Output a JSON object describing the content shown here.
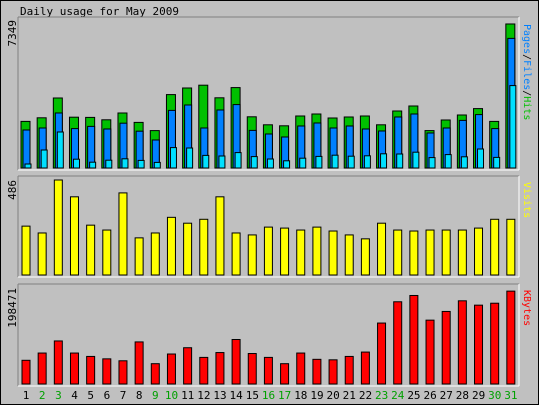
{
  "chart_data": [
    {
      "type": "bar",
      "title": "Daily usage for May 2009",
      "ymax_label": "7349",
      "ymax": 7349,
      "legend": [
        {
          "text": "Pages",
          "color": "#0080ff"
        },
        {
          "text": "/",
          "color": "#000000"
        },
        {
          "text": "Files",
          "color": "#0080ff"
        },
        {
          "text": "/",
          "color": "#000000"
        },
        {
          "text": "Hits",
          "color": "#00c000"
        }
      ],
      "colors": {
        "hits": "#00c000",
        "files": "#0080ff",
        "pages": "#00e0ff"
      },
      "series": [
        {
          "name": "Hits",
          "values": [
            2330,
            2510,
            3500,
            2540,
            2530,
            2410,
            2750,
            2280,
            1870,
            3670,
            4000,
            4140,
            3510,
            4020,
            2560,
            2160,
            2110,
            2600,
            2700,
            2500,
            2550,
            2600,
            2160,
            2850,
            3100,
            1870,
            2400,
            2650,
            2970,
            2330,
            7200
          ]
        },
        {
          "name": "Files",
          "values": [
            1900,
            2000,
            2750,
            1970,
            2080,
            1950,
            2240,
            1840,
            1400,
            2880,
            3150,
            2000,
            2900,
            3170,
            1880,
            1700,
            1550,
            2100,
            2250,
            2000,
            2100,
            1950,
            1850,
            2550,
            2700,
            1750,
            2000,
            2380,
            2670,
            1970,
            6480
          ]
        },
        {
          "name": "Pages",
          "values": [
            200,
            900,
            1800,
            440,
            290,
            390,
            460,
            380,
            280,
            1020,
            1000,
            630,
            600,
            770,
            570,
            450,
            360,
            490,
            580,
            640,
            590,
            610,
            710,
            700,
            790,
            520,
            670,
            560,
            950,
            530,
            4120
          ]
        }
      ]
    },
    {
      "type": "bar",
      "ymax_label": "486",
      "ymax": 486,
      "legend": [
        {
          "text": "Visits",
          "color": "#ffff00"
        }
      ],
      "colors": {
        "visits": "#ffff00"
      },
      "series": [
        {
          "name": "Visits",
          "values": [
            250,
            215,
            486,
            400,
            255,
            230,
            420,
            190,
            215,
            295,
            265,
            285,
            400,
            215,
            205,
            245,
            240,
            230,
            245,
            225,
            205,
            185,
            265,
            230,
            225,
            230,
            230,
            230,
            240,
            285,
            285
          ]
        }
      ]
    },
    {
      "type": "bar",
      "ymax_label": "198471",
      "ymax": 198471,
      "legend": [
        {
          "text": "KBytes",
          "color": "#ff0000"
        }
      ],
      "colors": {
        "kbytes": "#ff0000"
      },
      "series": [
        {
          "name": "KBytes",
          "values": [
            49000,
            64000,
            89000,
            64000,
            57000,
            52000,
            48000,
            87000,
            42000,
            62000,
            75000,
            55000,
            65000,
            92000,
            63000,
            55000,
            42000,
            64000,
            51000,
            50000,
            57000,
            66000,
            126000,
            170000,
            183000,
            132000,
            150000,
            172000,
            163000,
            167000,
            192000
          ]
        }
      ]
    }
  ],
  "days": [
    "1",
    "2",
    "3",
    "4",
    "5",
    "6",
    "7",
    "8",
    "9",
    "10",
    "11",
    "12",
    "13",
    "14",
    "15",
    "16",
    "17",
    "18",
    "19",
    "20",
    "21",
    "22",
    "23",
    "24",
    "25",
    "26",
    "27",
    "28",
    "29",
    "30",
    "31"
  ],
  "weekend_days": [
    "2",
    "3",
    "9",
    "10",
    "16",
    "17",
    "23",
    "24",
    "30",
    "31"
  ],
  "day_colors": {
    "weekday": "#000000",
    "weekend": "#00a000"
  }
}
